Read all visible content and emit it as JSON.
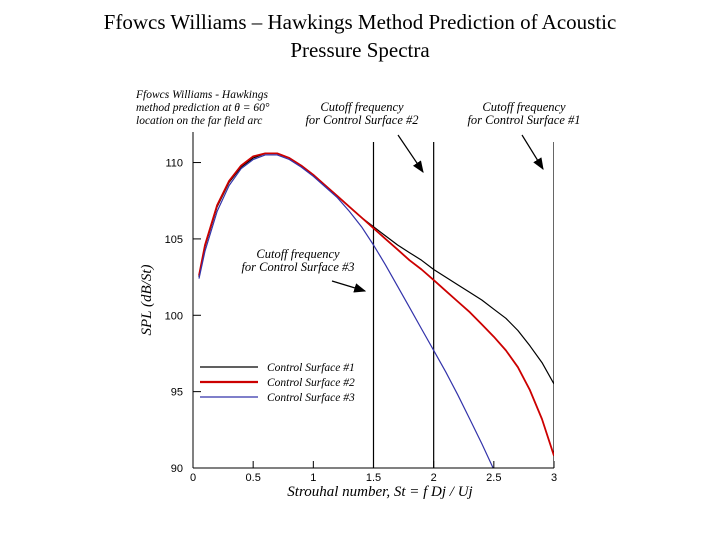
{
  "slide": {
    "title_line1": "Ffowcs Williams – Hawkings Method Prediction of Acoustic",
    "title_line2": "Pressure Spectra"
  },
  "chart_data": {
    "type": "line",
    "xlabel": "Strouhal number, St = f Dj / Uj",
    "ylabel": "SPL (dB/St)",
    "xlim": [
      0,
      3
    ],
    "ylim": [
      90,
      112
    ],
    "xticks": [
      0,
      0.5,
      1,
      1.5,
      2,
      2.5,
      3
    ],
    "xtick_labels": [
      "0",
      "0.5",
      "1",
      "1.5",
      "2",
      "2.5",
      "3"
    ],
    "yticks": [
      90,
      95,
      100,
      105,
      110
    ],
    "ytick_labels": [
      "90",
      "95",
      "100",
      "105",
      "110"
    ],
    "grid": false,
    "legend_placement": "lower-left",
    "note_lines": [
      "Ffowcs Williams - Hawkings",
      "method prediction at  θ = 60°",
      "location on the far field arc"
    ],
    "cutoff_lines": [
      {
        "x": 1.5,
        "label_lines": [
          "Cutoff frequency",
          "for Control Surface #3"
        ]
      },
      {
        "x": 2.0,
        "label_lines": [
          "Cutoff frequency",
          "for Control Surface #2"
        ]
      },
      {
        "x": 3.0,
        "label_lines": [
          "Cutoff frequency",
          "for Control Surface #1"
        ]
      }
    ],
    "series": [
      {
        "name": "Control Surface #1",
        "color": "#000000",
        "x": [
          0.05,
          0.1,
          0.2,
          0.3,
          0.4,
          0.5,
          0.6,
          0.7,
          0.8,
          0.9,
          1.0,
          1.1,
          1.2,
          1.3,
          1.4,
          1.5,
          1.6,
          1.7,
          1.8,
          1.9,
          2.0,
          2.1,
          2.2,
          2.3,
          2.4,
          2.5,
          2.6,
          2.7,
          2.8,
          2.9,
          3.0
        ],
        "y": [
          102.5,
          104.5,
          107.1,
          108.7,
          109.7,
          110.3,
          110.6,
          110.6,
          110.3,
          109.8,
          109.2,
          108.5,
          107.8,
          107.1,
          106.4,
          105.8,
          105.2,
          104.6,
          104.1,
          103.6,
          103.0,
          102.5,
          102.0,
          101.5,
          101.0,
          100.4,
          99.8,
          99.0,
          98.0,
          96.9,
          95.5
        ]
      },
      {
        "name": "Control Surface #2",
        "color": "#cc0000",
        "x": [
          0.05,
          0.1,
          0.2,
          0.3,
          0.4,
          0.5,
          0.6,
          0.7,
          0.8,
          0.9,
          1.0,
          1.1,
          1.2,
          1.3,
          1.4,
          1.5,
          1.6,
          1.7,
          1.8,
          1.9,
          2.0,
          2.1,
          2.2,
          2.3,
          2.4,
          2.5,
          2.6,
          2.7,
          2.8,
          2.9,
          3.0
        ],
        "y": [
          102.6,
          104.6,
          107.2,
          108.8,
          109.8,
          110.4,
          110.6,
          110.6,
          110.3,
          109.8,
          109.2,
          108.5,
          107.8,
          107.1,
          106.4,
          105.7,
          105.0,
          104.3,
          103.6,
          103.0,
          102.3,
          101.6,
          100.9,
          100.2,
          99.4,
          98.6,
          97.7,
          96.6,
          95.1,
          93.2,
          90.8
        ]
      },
      {
        "name": "Control Surface #3",
        "color": "#3333aa",
        "x": [
          0.05,
          0.1,
          0.2,
          0.3,
          0.4,
          0.5,
          0.6,
          0.7,
          0.8,
          0.9,
          1.0,
          1.1,
          1.2,
          1.3,
          1.4,
          1.5,
          1.6,
          1.7,
          1.8,
          1.9,
          2.0,
          2.1,
          2.2,
          2.3,
          2.4,
          2.5
        ],
        "y": [
          102.4,
          104.2,
          106.8,
          108.5,
          109.6,
          110.2,
          110.5,
          110.5,
          110.2,
          109.7,
          109.1,
          108.4,
          107.7,
          106.8,
          105.8,
          104.6,
          103.3,
          101.9,
          100.5,
          99.1,
          97.7,
          96.3,
          94.8,
          93.2,
          91.6,
          89.9
        ]
      }
    ]
  }
}
